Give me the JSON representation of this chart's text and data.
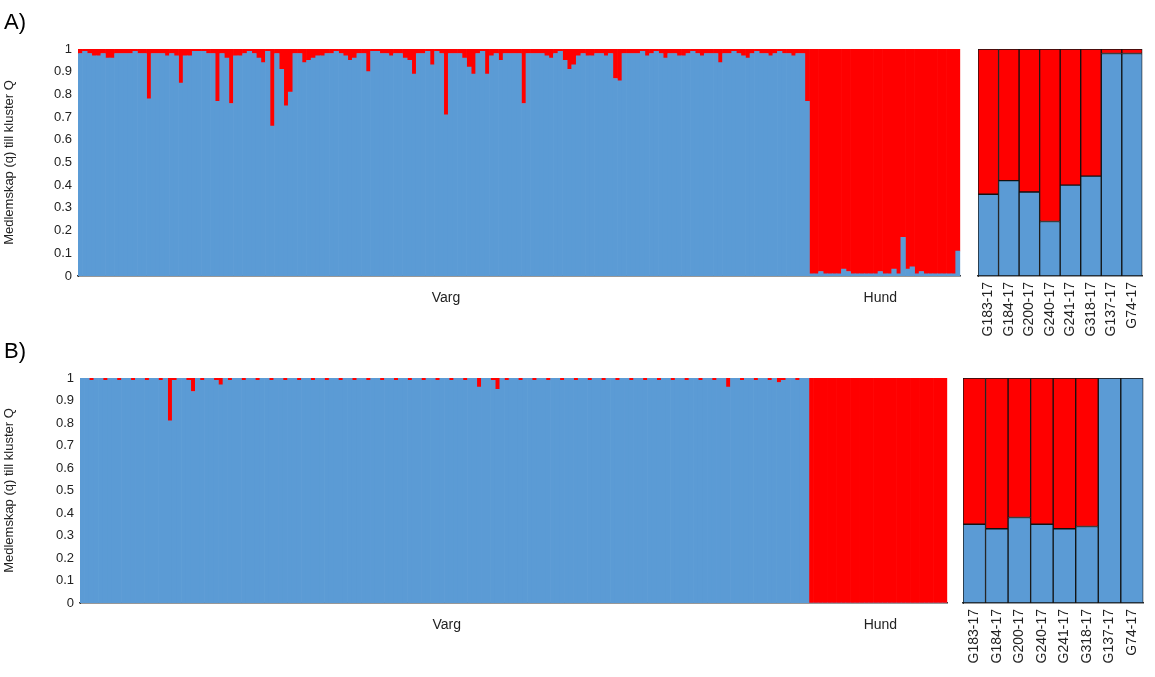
{
  "chart_data": [
    {
      "type": "bar",
      "title": "A)",
      "ylabel": "Medlemskap (q) till kluster Q",
      "stacked": true,
      "ylim": [
        0,
        1
      ],
      "yticks": [
        0,
        0.1,
        0.2,
        0.3,
        0.4,
        0.5,
        0.6,
        0.7,
        0.8,
        0.9,
        1
      ],
      "categories": [
        null,
        null,
        null,
        null,
        null,
        null,
        null,
        null,
        null,
        null,
        null,
        null,
        null,
        null,
        null,
        null,
        null,
        null,
        null,
        null,
        null,
        null,
        null,
        null,
        null,
        null,
        null,
        null,
        null,
        null,
        null,
        null,
        null,
        null,
        null,
        null,
        null,
        null,
        null,
        null,
        null,
        null,
        null,
        null,
        null,
        null,
        null,
        null,
        null,
        null,
        null,
        null,
        null,
        null,
        null,
        null,
        null,
        null,
        null,
        null,
        null,
        null,
        null,
        null,
        null,
        null,
        null,
        null,
        null,
        null,
        null,
        null,
        null,
        null,
        null,
        null,
        null,
        null,
        null,
        null,
        "Varg",
        null,
        null,
        null,
        null,
        null,
        null,
        null,
        null,
        null,
        null,
        null,
        null,
        null,
        null,
        null,
        null,
        null,
        null,
        null,
        null,
        null,
        null,
        null,
        null,
        null,
        null,
        null,
        null,
        null,
        null,
        null,
        null,
        null,
        null,
        null,
        null,
        null,
        null,
        null,
        null,
        null,
        null,
        null,
        null,
        null,
        null,
        null,
        null,
        null,
        null,
        null,
        null,
        null,
        null,
        null,
        null,
        null,
        null,
        null,
        null,
        null,
        null,
        null,
        null,
        null,
        null,
        null,
        null,
        null,
        null,
        null,
        null,
        null,
        null,
        null,
        null,
        null,
        null,
        null,
        null,
        null,
        null,
        null,
        null,
        null,
        null,
        null,
        null,
        null,
        null,
        null,
        null,
        null,
        null,
        "Hund",
        null,
        null,
        null,
        null,
        null,
        null,
        null,
        null,
        null,
        null,
        null,
        null,
        null,
        null,
        null,
        null,
        null
      ],
      "series": [
        {
          "color": "#5b9bd5",
          "values": [
            0.98,
            0.99,
            0.98,
            0.97,
            0.97,
            0.98,
            0.96,
            0.96,
            0.98,
            0.98,
            0.98,
            0.98,
            0.99,
            0.98,
            0.98,
            0.78,
            0.98,
            0.98,
            0.98,
            0.97,
            0.98,
            0.97,
            0.85,
            0.97,
            0.97,
            0.99,
            0.99,
            0.99,
            0.98,
            0.98,
            0.77,
            0.98,
            0.96,
            0.76,
            0.97,
            0.97,
            0.98,
            0.99,
            0.98,
            0.96,
            0.94,
            0.99,
            0.66,
            0.98,
            0.91,
            0.75,
            0.81,
            0.98,
            0.98,
            0.94,
            0.95,
            0.96,
            0.97,
            0.97,
            0.98,
            0.98,
            0.99,
            0.98,
            0.97,
            0.95,
            0.96,
            0.98,
            0.98,
            0.9,
            0.99,
            0.99,
            0.98,
            0.98,
            0.97,
            0.98,
            0.98,
            0.96,
            0.95,
            0.89,
            0.98,
            0.98,
            0.99,
            0.93,
            0.99,
            0.98,
            0.71,
            0.98,
            0.98,
            0.98,
            0.96,
            0.92,
            0.89,
            0.98,
            0.99,
            0.89,
            0.97,
            0.98,
            0.95,
            0.98,
            0.98,
            0.98,
            0.98,
            0.76,
            0.98,
            0.98,
            0.98,
            0.98,
            0.97,
            0.96,
            0.98,
            0.99,
            0.95,
            0.91,
            0.93,
            0.97,
            0.98,
            0.97,
            0.97,
            0.98,
            0.98,
            0.97,
            0.98,
            0.87,
            0.86,
            0.98,
            0.98,
            0.98,
            0.98,
            0.99,
            0.97,
            0.98,
            0.99,
            0.98,
            0.96,
            0.98,
            0.98,
            0.97,
            0.97,
            0.98,
            0.99,
            0.98,
            0.97,
            0.98,
            0.98,
            0.98,
            0.94,
            0.98,
            0.98,
            0.99,
            0.98,
            0.97,
            0.96,
            0.98,
            0.99,
            0.98,
            0.98,
            0.97,
            0.98,
            0.99,
            0.98,
            0.98,
            0.97,
            0.98,
            0.98,
            0.77,
            0.01,
            0.01,
            0.02,
            0.01,
            0.01,
            0.01,
            0.01,
            0.03,
            0.02,
            0.01,
            0.01,
            0.01,
            0.01,
            0.01,
            0.01,
            0.02,
            0.01,
            0.01,
            0.03,
            0.01,
            0.17,
            0.03,
            0.04,
            0.01,
            0.02,
            0.01,
            0.01,
            0.01,
            0.01,
            0.01,
            0.01,
            0.01,
            0.11
          ]
        },
        {
          "color": "#ff0000",
          "values": [
            0.02,
            0.01,
            0.02,
            0.03,
            0.03,
            0.02,
            0.04,
            0.04,
            0.02,
            0.02,
            0.02,
            0.02,
            0.01,
            0.02,
            0.02,
            0.22,
            0.02,
            0.02,
            0.02,
            0.03,
            0.02,
            0.03,
            0.15,
            0.03,
            0.03,
            0.01,
            0.01,
            0.01,
            0.02,
            0.02,
            0.23,
            0.02,
            0.04,
            0.24,
            0.03,
            0.03,
            0.02,
            0.01,
            0.02,
            0.04,
            0.06,
            0.01,
            0.34,
            0.02,
            0.09,
            0.25,
            0.19,
            0.02,
            0.02,
            0.06,
            0.05,
            0.04,
            0.03,
            0.03,
            0.02,
            0.02,
            0.01,
            0.02,
            0.03,
            0.05,
            0.04,
            0.02,
            0.02,
            0.1,
            0.01,
            0.01,
            0.02,
            0.02,
            0.03,
            0.02,
            0.02,
            0.04,
            0.05,
            0.11,
            0.02,
            0.02,
            0.01,
            0.07,
            0.01,
            0.02,
            0.29,
            0.02,
            0.02,
            0.02,
            0.04,
            0.08,
            0.11,
            0.02,
            0.01,
            0.11,
            0.03,
            0.02,
            0.05,
            0.02,
            0.02,
            0.02,
            0.02,
            0.24,
            0.02,
            0.02,
            0.02,
            0.02,
            0.03,
            0.04,
            0.02,
            0.01,
            0.05,
            0.09,
            0.07,
            0.03,
            0.02,
            0.03,
            0.03,
            0.02,
            0.02,
            0.03,
            0.02,
            0.13,
            0.14,
            0.02,
            0.02,
            0.02,
            0.02,
            0.01,
            0.03,
            0.02,
            0.01,
            0.02,
            0.04,
            0.02,
            0.02,
            0.03,
            0.03,
            0.02,
            0.01,
            0.02,
            0.03,
            0.02,
            0.02,
            0.02,
            0.06,
            0.02,
            0.02,
            0.01,
            0.02,
            0.03,
            0.04,
            0.02,
            0.01,
            0.02,
            0.02,
            0.03,
            0.02,
            0.01,
            0.02,
            0.02,
            0.03,
            0.02,
            0.02,
            0.23,
            0.99,
            0.99,
            0.98,
            0.99,
            0.99,
            0.99,
            0.99,
            0.97,
            0.98,
            0.99,
            0.99,
            0.99,
            0.99,
            0.99,
            0.99,
            0.98,
            0.99,
            0.99,
            0.97,
            0.99,
            0.83,
            0.97,
            0.96,
            0.99,
            0.98,
            0.99,
            0.99,
            0.99,
            0.99,
            0.99,
            0.99,
            0.99,
            0.89
          ]
        }
      ]
    },
    {
      "type": "bar",
      "stacked": true,
      "ylim": [
        0,
        1
      ],
      "yticks": [
        0,
        0.1,
        0.2,
        0.3,
        0.4,
        0.5,
        0.6,
        0.7,
        0.8,
        0.9,
        1
      ],
      "tick_labels": "x",
      "categories": [
        "G183-17",
        "G184-17",
        "G200-17",
        "G240-17",
        "G241-17",
        "G318-17",
        "G137-17",
        "G74-17"
      ],
      "series": [
        {
          "color": "#5b9bd5",
          "values": [
            0.36,
            0.42,
            0.37,
            0.24,
            0.4,
            0.44,
            0.98,
            0.98
          ]
        },
        {
          "color": "#ff0000",
          "values": [
            0.64,
            0.58,
            0.63,
            0.76,
            0.6,
            0.56,
            0.02,
            0.02
          ]
        }
      ]
    },
    {
      "type": "bar",
      "title": "B)",
      "ylabel": "Medlemskap (q) till kluster Q",
      "stacked": true,
      "ylim": [
        0,
        1
      ],
      "yticks": [
        0,
        0.1,
        0.2,
        0.3,
        0.4,
        0.5,
        0.6,
        0.7,
        0.8,
        0.9,
        1
      ],
      "categories": [
        null,
        null,
        null,
        null,
        null,
        null,
        null,
        null,
        null,
        null,
        null,
        null,
        null,
        null,
        null,
        null,
        null,
        null,
        null,
        null,
        null,
        null,
        null,
        null,
        null,
        null,
        null,
        null,
        null,
        null,
        null,
        null,
        null,
        null,
        null,
        null,
        null,
        null,
        null,
        null,
        null,
        null,
        null,
        null,
        null,
        null,
        null,
        null,
        null,
        null,
        null,
        null,
        null,
        null,
        null,
        null,
        null,
        null,
        null,
        null,
        null,
        null,
        null,
        null,
        null,
        null,
        null,
        null,
        null,
        null,
        null,
        null,
        null,
        null,
        null,
        null,
        null,
        null,
        null,
        "Varg",
        null,
        null,
        null,
        null,
        null,
        null,
        null,
        null,
        null,
        null,
        null,
        null,
        null,
        null,
        null,
        null,
        null,
        null,
        null,
        null,
        null,
        null,
        null,
        null,
        null,
        null,
        null,
        null,
        null,
        null,
        null,
        null,
        null,
        null,
        null,
        null,
        null,
        null,
        null,
        null,
        null,
        null,
        null,
        null,
        null,
        null,
        null,
        null,
        null,
        null,
        null,
        null,
        null,
        null,
        null,
        null,
        null,
        null,
        null,
        null,
        null,
        null,
        null,
        null,
        null,
        null,
        null,
        null,
        null,
        null,
        null,
        null,
        null,
        null,
        null,
        null,
        null,
        null,
        null,
        null,
        null,
        null,
        null,
        null,
        null,
        null,
        null,
        null,
        null,
        null,
        null,
        null,
        null,
        "Hund",
        null,
        null,
        null,
        null,
        null,
        null,
        null,
        null,
        null,
        null,
        null,
        null,
        null,
        null
      ],
      "series": [
        {
          "color": "#5b9bd5",
          "values": [
            1,
            1,
            0.99,
            1,
            1,
            0.99,
            1,
            1,
            0.99,
            1,
            1,
            0.99,
            1,
            1,
            0.99,
            1,
            1,
            0.99,
            1,
            0.81,
            0.99,
            1,
            1,
            0.99,
            0.94,
            1,
            0.99,
            1,
            1,
            0.99,
            0.97,
            1,
            0.99,
            1,
            1,
            0.99,
            1,
            1,
            0.99,
            1,
            1,
            0.99,
            1,
            1,
            0.99,
            1,
            1,
            0.99,
            1,
            1,
            0.99,
            1,
            1,
            0.99,
            1,
            1,
            0.99,
            1,
            1,
            0.99,
            1,
            1,
            0.99,
            1,
            1,
            0.99,
            1,
            1,
            0.99,
            1,
            1,
            0.99,
            1,
            1,
            0.99,
            1,
            1,
            0.99,
            1,
            1,
            0.99,
            1,
            1,
            0.99,
            1,
            1,
            0.96,
            1,
            1,
            0.99,
            0.95,
            1,
            0.99,
            1,
            1,
            0.99,
            1,
            1,
            0.99,
            1,
            1,
            0.99,
            1,
            1,
            0.99,
            1,
            1,
            0.99,
            1,
            1,
            0.99,
            1,
            1,
            0.99,
            1,
            1,
            0.99,
            1,
            1,
            0.99,
            1,
            1,
            0.99,
            1,
            1,
            0.99,
            1,
            1,
            0.99,
            1,
            1,
            0.99,
            1,
            1,
            0.99,
            1,
            1,
            0.99,
            1,
            1,
            0.96,
            1,
            1,
            0.99,
            1,
            1,
            0.99,
            1,
            1,
            0.99,
            1,
            0.98,
            0.99,
            1,
            1,
            0.99,
            1,
            1,
            0,
            0,
            0,
            0,
            0,
            0,
            0,
            0,
            0,
            0,
            0,
            0,
            0,
            0,
            0,
            0,
            0,
            0,
            0,
            0,
            0,
            0,
            0,
            0,
            0,
            0,
            0,
            0,
            0,
            0
          ]
        },
        {
          "color": "#ff0000",
          "values": [
            0,
            0,
            0.01,
            0,
            0,
            0.01,
            0,
            0,
            0.01,
            0,
            0,
            0.01,
            0,
            0,
            0.01,
            0,
            0,
            0.01,
            0,
            0.19,
            0.01,
            0,
            0,
            0.01,
            0.06,
            0,
            0.01,
            0,
            0,
            0.01,
            0.03,
            0,
            0.01,
            0,
            0,
            0.01,
            0,
            0,
            0.01,
            0,
            0,
            0.01,
            0,
            0,
            0.01,
            0,
            0,
            0.01,
            0,
            0,
            0.01,
            0,
            0,
            0.01,
            0,
            0,
            0.01,
            0,
            0,
            0.01,
            0,
            0,
            0.01,
            0,
            0,
            0.01,
            0,
            0,
            0.01,
            0,
            0,
            0.01,
            0,
            0,
            0.01,
            0,
            0,
            0.01,
            0,
            0,
            0.01,
            0,
            0,
            0.01,
            0,
            0,
            0.04,
            0,
            0,
            0.01,
            0.05,
            0,
            0.01,
            0,
            0,
            0.01,
            0,
            0,
            0.01,
            0,
            0,
            0.01,
            0,
            0,
            0.01,
            0,
            0,
            0.01,
            0,
            0,
            0.01,
            0,
            0,
            0.01,
            0,
            0,
            0.01,
            0,
            0,
            0.01,
            0,
            0,
            0.01,
            0,
            0,
            0.01,
            0,
            0,
            0.01,
            0,
            0,
            0.01,
            0,
            0,
            0.01,
            0,
            0,
            0.01,
            0,
            0,
            0.04,
            0,
            0,
            0.01,
            0,
            0,
            0.01,
            0,
            0,
            0.01,
            0,
            0.02,
            0.01,
            0,
            0,
            0.01,
            0,
            0,
            1,
            1,
            1,
            1,
            1,
            1,
            1,
            1,
            1,
            1,
            1,
            1,
            1,
            1,
            1,
            1,
            1,
            1,
            1,
            1,
            1,
            1,
            1,
            1,
            1,
            1,
            1,
            1,
            1,
            1
          ]
        }
      ]
    },
    {
      "type": "bar",
      "stacked": true,
      "ylim": [
        0,
        1
      ],
      "yticks": [
        0,
        0.1,
        0.2,
        0.3,
        0.4,
        0.5,
        0.6,
        0.7,
        0.8,
        0.9,
        1
      ],
      "tick_labels": "x",
      "categories": [
        "G183-17",
        "G184-17",
        "G200-17",
        "G240-17",
        "G241-17",
        "G318-17",
        "G137-17",
        "G74-17"
      ],
      "series": [
        {
          "color": "#5b9bd5",
          "values": [
            0.35,
            0.33,
            0.38,
            0.35,
            0.33,
            0.34,
            1,
            1
          ]
        },
        {
          "color": "#ff0000",
          "values": [
            0.65,
            0.67,
            0.62,
            0.65,
            0.67,
            0.66,
            0,
            0
          ]
        }
      ]
    }
  ]
}
